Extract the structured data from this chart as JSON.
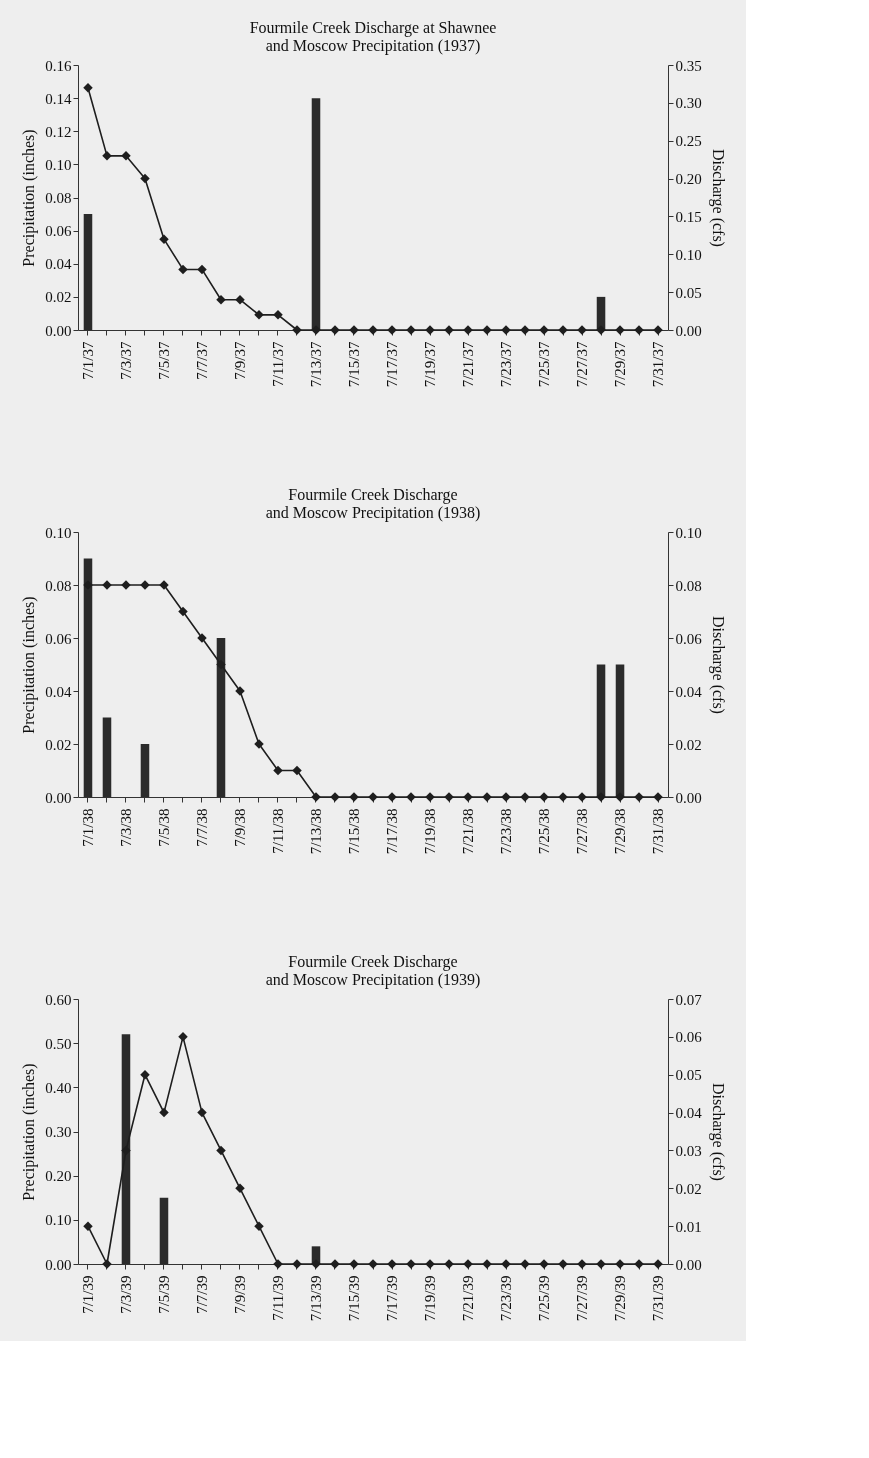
{
  "chart_data": [
    {
      "type": "bar",
      "title": "Fourmile Creek Discharge at Shawnee\nand Moscow Precipitation (1937)",
      "ylabel": "Precipitation (inches)",
      "y2label": "Discharge (cfs)",
      "categories": [
        "7/1/37",
        null,
        "7/3/37",
        null,
        "7/5/37",
        null,
        "7/7/37",
        null,
        "7/9/37",
        null,
        "7/11/37",
        null,
        "7/13/37",
        null,
        "7/15/37",
        null,
        "7/17/37",
        null,
        "7/19/37",
        null,
        "7/21/37",
        null,
        "7/23/37",
        null,
        "7/25/37",
        null,
        "7/27/37",
        null,
        "7/29/37",
        null,
        "7/31/37"
      ],
      "series": [
        {
          "color": "#2b2b2b",
          "values": [
            0.07,
            0,
            0,
            0,
            0,
            0,
            0,
            0,
            0,
            0,
            0,
            0,
            0.14,
            0,
            0,
            0,
            0,
            0,
            0,
            0,
            0,
            0,
            0,
            0,
            0,
            0,
            0,
            0.02,
            0,
            0,
            0
          ]
        },
        {
          "type": "line",
          "axis": "y2",
          "color": "#1e1e1e",
          "marker": "diamond",
          "values": [
            0.32,
            0.23,
            0.23,
            0.2,
            0.12,
            0.08,
            0.08,
            0.04,
            0.04,
            0.02,
            0.02,
            0,
            0,
            0,
            0,
            0,
            0,
            0,
            0,
            0,
            0,
            0,
            0,
            0,
            0,
            0,
            0,
            0,
            0,
            0,
            0
          ]
        }
      ],
      "ylim": [
        0,
        0.16
      ],
      "yticks": [
        {
          "value": 0,
          "label": "0.00"
        },
        0.02,
        0.04,
        0.06,
        0.08,
        {
          "value": 0.1,
          "label": "0.10"
        },
        0.12,
        0.14,
        0.16
      ],
      "y2lim": [
        0,
        0.35
      ],
      "y2ticks": [
        {
          "value": 0,
          "label": "0.00"
        },
        0.05,
        {
          "value": 0.1,
          "label": "0.10"
        },
        0.15,
        {
          "value": 0.2,
          "label": "0.20"
        },
        0.25,
        {
          "value": 0.3,
          "label": "0.30"
        },
        0.35
      ]
    },
    {
      "type": "bar",
      "title": "Fourmile Creek Discharge\nand Moscow Precipitation (1938)",
      "ylabel": "Precipitation (inches)",
      "y2label": "Discharge (cfs)",
      "categories": [
        "7/1/38",
        null,
        "7/3/38",
        null,
        "7/5/38",
        null,
        "7/7/38",
        null,
        "7/9/38",
        null,
        "7/11/38",
        null,
        "7/13/38",
        null,
        "7/15/38",
        null,
        "7/17/38",
        null,
        "7/19/38",
        null,
        "7/21/38",
        null,
        "7/23/38",
        null,
        "7/25/38",
        null,
        "7/27/38",
        null,
        "7/29/38",
        null,
        "7/31/38"
      ],
      "series": [
        {
          "color": "#2b2b2b",
          "values": [
            0.09,
            0.03,
            0,
            0.02,
            0,
            0,
            0,
            0.06,
            0,
            0,
            0,
            0,
            0,
            0,
            0,
            0,
            0,
            0,
            0,
            0,
            0,
            0,
            0,
            0,
            0,
            0,
            0,
            0.05,
            0.05,
            0,
            0
          ]
        },
        {
          "type": "line",
          "axis": "y2",
          "color": "#1e1e1e",
          "marker": "diamond",
          "values": [
            0.08,
            0.08,
            0.08,
            0.08,
            0.08,
            0.07,
            0.06,
            0.05,
            0.04,
            0.02,
            0.01,
            0.01,
            0,
            0,
            0,
            0,
            0,
            0,
            0,
            0,
            0,
            0,
            0,
            0,
            0,
            0,
            0,
            0,
            0,
            0,
            0
          ]
        }
      ],
      "ylim": [
        0,
        0.1
      ],
      "yticks": [
        {
          "value": 0,
          "label": "0.00"
        },
        0.02,
        0.04,
        0.06,
        0.08,
        {
          "value": 0.1,
          "label": "0.10"
        }
      ],
      "y2lim": [
        0,
        0.1
      ],
      "y2ticks": [
        {
          "value": 0,
          "label": "0.00"
        },
        0.02,
        0.04,
        0.06,
        0.08,
        {
          "value": 0.1,
          "label": "0.10"
        }
      ]
    },
    {
      "type": "bar",
      "title": "Fourmile Creek Discharge\nand Moscow Precipitation (1939)",
      "ylabel": "Precipitation (inches)",
      "y2label": "Discharge (cfs)",
      "categories": [
        "7/1/39",
        null,
        "7/3/39",
        null,
        "7/5/39",
        null,
        "7/7/39",
        null,
        "7/9/39",
        null,
        "7/11/39",
        null,
        "7/13/39",
        null,
        "7/15/39",
        null,
        "7/17/39",
        null,
        "7/19/39",
        null,
        "7/21/39",
        null,
        "7/23/39",
        null,
        "7/25/39",
        null,
        "7/27/39",
        null,
        "7/29/39",
        null,
        "7/31/39"
      ],
      "series": [
        {
          "color": "#2b2b2b",
          "values": [
            0,
            0,
            0.52,
            0,
            0.15,
            0,
            0,
            0,
            0,
            0,
            0,
            0,
            0.04,
            0,
            0,
            0,
            0,
            0,
            0,
            0,
            0,
            0,
            0,
            0,
            0,
            0,
            0,
            0,
            0,
            0,
            0
          ]
        },
        {
          "type": "line",
          "axis": "y2",
          "color": "#1e1e1e",
          "marker": "diamond",
          "values": [
            0.01,
            0,
            0.03,
            0.05,
            0.04,
            0.06,
            0.04,
            0.03,
            0.02,
            0.01,
            0,
            0,
            0,
            0,
            0,
            0,
            0,
            0,
            0,
            0,
            0,
            0,
            0,
            0,
            0,
            0,
            0,
            0,
            0,
            0,
            0
          ]
        }
      ],
      "ylim": [
        0,
        0.6
      ],
      "yticks": [
        {
          "value": 0,
          "label": "0.00"
        },
        {
          "value": 0.1,
          "label": "0.10"
        },
        {
          "value": 0.2,
          "label": "0.20"
        },
        {
          "value": 0.3,
          "label": "0.30"
        },
        {
          "value": 0.4,
          "label": "0.40"
        },
        {
          "value": 0.5,
          "label": "0.50"
        },
        {
          "value": 0.6,
          "label": "0.60"
        }
      ],
      "y2lim": [
        0,
        0.07
      ],
      "y2ticks": [
        {
          "value": 0,
          "label": "0.00"
        },
        0.01,
        0.02,
        0.03,
        0.04,
        0.05,
        0.06,
        0.07
      ]
    }
  ]
}
